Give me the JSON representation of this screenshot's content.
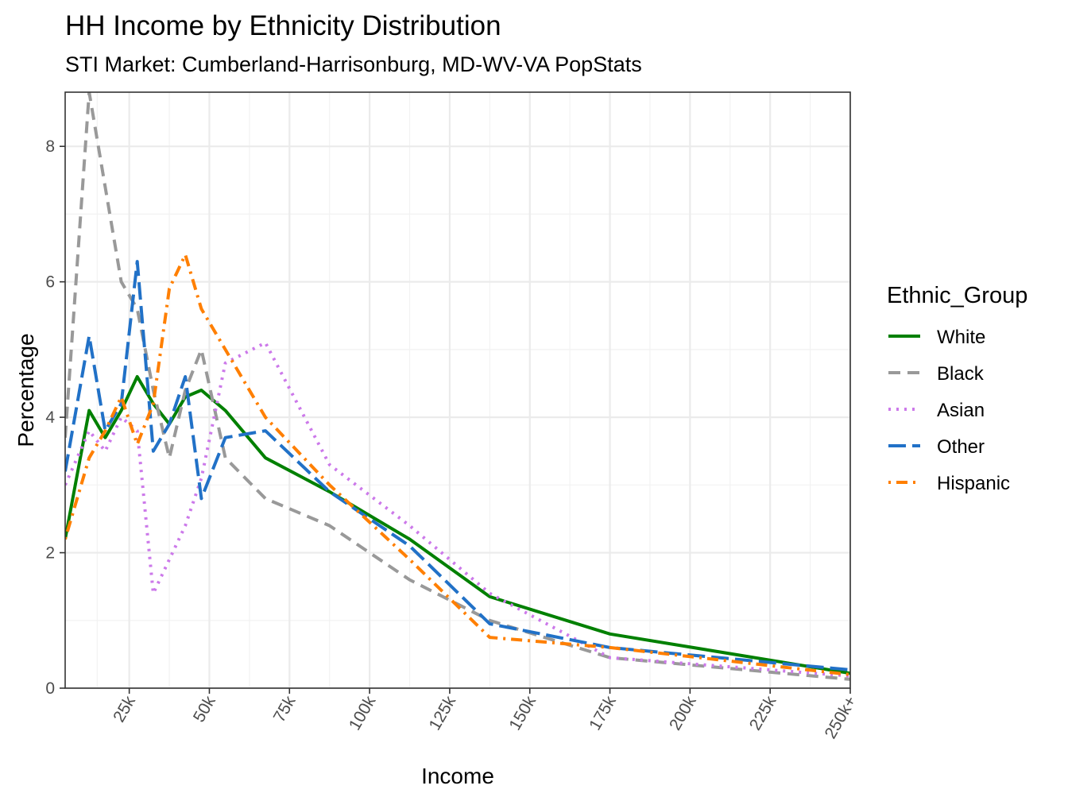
{
  "chart_data": {
    "type": "line",
    "title": "HH Income by Ethnicity Distribution",
    "subtitle": "STI Market: Cumberland-Harrisonburg, MD-WV-VA PopStats",
    "xlabel": "Income",
    "ylabel": "Percentage",
    "x_tick_labels": [
      "25k",
      "50k",
      "75k",
      "100k",
      "125k",
      "150k",
      "175k",
      "200k",
      "225k",
      "250k+"
    ],
    "x_tick_values": [
      25,
      50,
      75,
      100,
      125,
      150,
      175,
      200,
      225,
      250
    ],
    "y_tick_labels": [
      "0",
      "2",
      "4",
      "6",
      "8"
    ],
    "y_tick_values": [
      0,
      2,
      4,
      6,
      8
    ],
    "xlim": [
      5,
      250
    ],
    "ylim": [
      0,
      8.8
    ],
    "grid": true,
    "legend_title": "Ethnic_Group",
    "legend_position": "right",
    "x": [
      5,
      12.5,
      17.5,
      22.5,
      27.5,
      32.5,
      37.5,
      42.5,
      47.5,
      55,
      67.5,
      87.5,
      112.5,
      137.5,
      175,
      250
    ],
    "series": [
      {
        "name": "White",
        "color": "#008000",
        "dash": "solid",
        "values": [
          2.2,
          4.1,
          3.7,
          4.1,
          4.6,
          4.2,
          3.9,
          4.3,
          4.4,
          4.1,
          3.4,
          2.9,
          2.2,
          1.35,
          0.8,
          0.22
        ]
      },
      {
        "name": "Black",
        "color": "#999999",
        "dash": "dashed",
        "values": [
          3.7,
          8.8,
          7.4,
          6.0,
          5.6,
          4.4,
          3.4,
          4.4,
          5.0,
          3.4,
          2.8,
          2.4,
          1.6,
          1.0,
          0.45,
          0.13
        ]
      },
      {
        "name": "Asian",
        "color": "#cc79ea",
        "dash": "dotted",
        "values": [
          3.0,
          3.8,
          3.5,
          4.0,
          3.8,
          1.4,
          1.9,
          2.4,
          3.1,
          4.8,
          5.1,
          3.3,
          2.4,
          1.4,
          0.45,
          0.18
        ]
      },
      {
        "name": "Other",
        "color": "#2171c7",
        "dash": "longdash",
        "values": [
          3.2,
          5.2,
          3.8,
          4.2,
          6.3,
          3.5,
          3.9,
          4.6,
          2.8,
          3.7,
          3.8,
          2.9,
          2.1,
          0.95,
          0.6,
          0.27
        ]
      },
      {
        "name": "Hispanic",
        "color": "#ff7f00",
        "dash": "dotdash",
        "values": [
          2.2,
          3.4,
          3.8,
          4.3,
          3.6,
          4.2,
          5.9,
          6.4,
          5.6,
          5.0,
          4.0,
          3.0,
          1.9,
          0.75,
          0.6,
          0.2
        ]
      }
    ]
  }
}
